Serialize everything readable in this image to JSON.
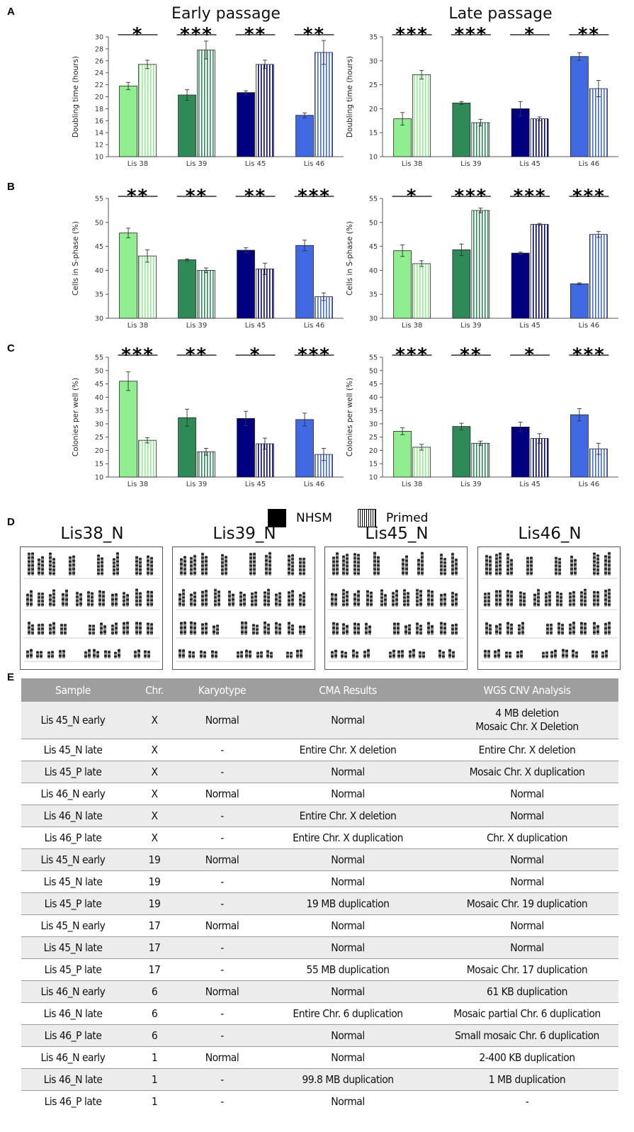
{
  "panel_labels": [
    "A",
    "B",
    "C",
    "D",
    "E"
  ],
  "colors": {
    "Lis 38": "#90ee90",
    "Lis 39": "#2e8b57",
    "Lis 45": "#000080",
    "Lis 46": "#4169e1"
  },
  "legend": {
    "nhsm": "NHSM",
    "primed": "Primed"
  },
  "chart_data": [
    {
      "type": "bar",
      "panel": "A",
      "title": "Early passage",
      "ylabel": "Doubling time (hours)",
      "ylim": [
        10,
        30
      ],
      "yticks": [
        10,
        12,
        14,
        16,
        18,
        20,
        22,
        24,
        26,
        28,
        30
      ],
      "categories": [
        "Lis 38",
        "Lis 39",
        "Lis 45",
        "Lis 46"
      ],
      "series": [
        {
          "name": "NHSM",
          "values": [
            21.8,
            20.3,
            20.7,
            16.9
          ],
          "errors": [
            0.6,
            0.9,
            0.3,
            0.4
          ]
        },
        {
          "name": "Primed",
          "values": [
            25.4,
            27.8,
            25.4,
            27.4
          ],
          "errors": [
            0.7,
            1.5,
            0.7,
            2.0
          ]
        }
      ],
      "significance": [
        "*",
        "***",
        "**",
        "**"
      ]
    },
    {
      "type": "bar",
      "panel": "A",
      "title": "Late passage",
      "ylabel": "Doubling time (hours)",
      "ylim": [
        10,
        35
      ],
      "yticks": [
        10,
        15,
        20,
        25,
        30,
        35
      ],
      "categories": [
        "Lis 38",
        "Lis 39",
        "Lis 45",
        "Lis 46"
      ],
      "series": [
        {
          "name": "NHSM",
          "values": [
            17.9,
            21.2,
            20.0,
            30.9
          ],
          "errors": [
            1.3,
            0.3,
            1.5,
            0.8
          ]
        },
        {
          "name": "Primed",
          "values": [
            27.1,
            17.1,
            17.9,
            24.2
          ],
          "errors": [
            0.9,
            0.7,
            0.4,
            1.7
          ]
        }
      ],
      "significance": [
        "***",
        "***",
        "*",
        "**"
      ]
    },
    {
      "type": "bar",
      "panel": "B",
      "title": "",
      "ylabel": "Cells in S-phase (%)",
      "ylim": [
        30,
        55
      ],
      "yticks": [
        30,
        35,
        40,
        45,
        50,
        55
      ],
      "categories": [
        "Lis 38",
        "Lis 39",
        "Lis 45",
        "Lis 46"
      ],
      "series": [
        {
          "name": "NHSM",
          "values": [
            47.8,
            42.2,
            44.2,
            45.2
          ],
          "errors": [
            1.0,
            0.2,
            0.5,
            1.1
          ]
        },
        {
          "name": "Primed",
          "values": [
            43.0,
            40.0,
            40.3,
            34.5
          ],
          "errors": [
            1.3,
            0.5,
            1.2,
            0.8
          ]
        }
      ],
      "significance": [
        "**",
        "**",
        "**",
        "***"
      ]
    },
    {
      "type": "bar",
      "panel": "B",
      "title": "",
      "ylabel": "Cells in S-phase (%)",
      "ylim": [
        30,
        55
      ],
      "yticks": [
        30,
        35,
        40,
        45,
        50,
        55
      ],
      "categories": [
        "Lis 38",
        "Lis 39",
        "Lis 45",
        "Lis 46"
      ],
      "series": [
        {
          "name": "NHSM",
          "values": [
            44.1,
            44.3,
            43.6,
            37.2
          ],
          "errors": [
            1.2,
            1.2,
            0.2,
            0.2
          ]
        },
        {
          "name": "Primed",
          "values": [
            41.4,
            52.5,
            49.6,
            47.5
          ],
          "errors": [
            0.6,
            0.5,
            0.2,
            0.6
          ]
        }
      ],
      "significance": [
        "*",
        "***",
        "***",
        "***"
      ]
    },
    {
      "type": "bar",
      "panel": "C",
      "title": "",
      "ylabel": "Colonies per well (%)",
      "ylim": [
        10,
        55
      ],
      "yticks": [
        10,
        15,
        20,
        25,
        30,
        35,
        40,
        45,
        50,
        55
      ],
      "categories": [
        "Lis 38",
        "Lis 39",
        "Lis 45",
        "Lis 46"
      ],
      "series": [
        {
          "name": "NHSM",
          "values": [
            46.0,
            32.3,
            32.0,
            31.6
          ],
          "errors": [
            3.5,
            3.2,
            2.7,
            2.4
          ]
        },
        {
          "name": "Primed",
          "values": [
            23.8,
            19.5,
            22.5,
            18.5
          ],
          "errors": [
            1.0,
            1.3,
            2.1,
            2.3
          ]
        }
      ],
      "significance": [
        "***",
        "**",
        "*",
        "***"
      ]
    },
    {
      "type": "bar",
      "panel": "C",
      "title": "",
      "ylabel": "Colonies per well (%)",
      "ylim": [
        10,
        55
      ],
      "yticks": [
        10,
        15,
        20,
        25,
        30,
        35,
        40,
        45,
        50,
        55
      ],
      "categories": [
        "Lis 38",
        "Lis 39",
        "Lis 45",
        "Lis 46"
      ],
      "series": [
        {
          "name": "NHSM",
          "values": [
            27.2,
            29.0,
            28.8,
            33.4
          ],
          "errors": [
            1.3,
            1.2,
            1.8,
            2.3
          ]
        },
        {
          "name": "Primed",
          "values": [
            21.2,
            22.7,
            24.5,
            20.6
          ],
          "errors": [
            1.1,
            0.8,
            1.8,
            2.1
          ]
        }
      ],
      "significance": [
        "***",
        "**",
        "*",
        "***"
      ]
    }
  ],
  "karyotypes": [
    "Lis38_N",
    "Lis39_N",
    "Lis45_N",
    "Lis46_N"
  ],
  "table": {
    "headers": [
      "Sample",
      "Chr.",
      "Karyotype",
      "CMA Results",
      "WGS CNV Analysis"
    ],
    "rows": [
      [
        "Lis 45_N early",
        "X",
        "Normal",
        "Normal",
        "4 MB deletion\nMosaic Chr. X Deletion"
      ],
      [
        "Lis 45_N late",
        "X",
        "-",
        "Entire Chr. X deletion",
        "Entire Chr. X deletion"
      ],
      [
        "Lis 45_P late",
        "X",
        "-",
        "Normal",
        "Mosaic Chr. X duplication"
      ],
      [
        "Lis 46_N early",
        "X",
        "Normal",
        "Normal",
        "Normal"
      ],
      [
        "Lis 46_N late",
        "X",
        "-",
        "Entire Chr. X deletion",
        "Normal"
      ],
      [
        "Lis 46_P late",
        "X",
        "-",
        "Entire Chr. X duplication",
        "Chr. X duplication"
      ],
      [
        "Lis 45_N early",
        "19",
        "Normal",
        "Normal",
        "Normal"
      ],
      [
        "Lis 45_N late",
        "19",
        "-",
        "Normal",
        "Normal"
      ],
      [
        "Lis 45_P late",
        "19",
        "-",
        "19 MB duplication",
        "Mosaic Chr. 19 duplication"
      ],
      [
        "Lis 45_N early",
        "17",
        "Normal",
        "Normal",
        "Normal"
      ],
      [
        "Lis 45_N late",
        "17",
        "-",
        "Normal",
        "Normal"
      ],
      [
        "Lis 45_P late",
        "17",
        "-",
        "55 MB duplication",
        "Mosaic Chr. 17 duplication"
      ],
      [
        "Lis 46_N early",
        "6",
        "Normal",
        "Normal",
        "61 KB duplication"
      ],
      [
        "Lis 46_N late",
        "6",
        "-",
        "Entire Chr. 6 duplication",
        "Mosaic partial Chr. 6 duplication"
      ],
      [
        "Lis 46_P late",
        "6",
        "-",
        "Normal",
        "Small mosaic Chr. 6 duplication"
      ],
      [
        "Lis 46_N early",
        "1",
        "Normal",
        "Normal",
        "2-400 KB duplication"
      ],
      [
        "Lis 46_N late",
        "1",
        "-",
        "99.8 MB duplication",
        "1 MB duplication"
      ],
      [
        "Lis 46_P late",
        "1",
        "-",
        "Normal",
        "-"
      ]
    ]
  }
}
